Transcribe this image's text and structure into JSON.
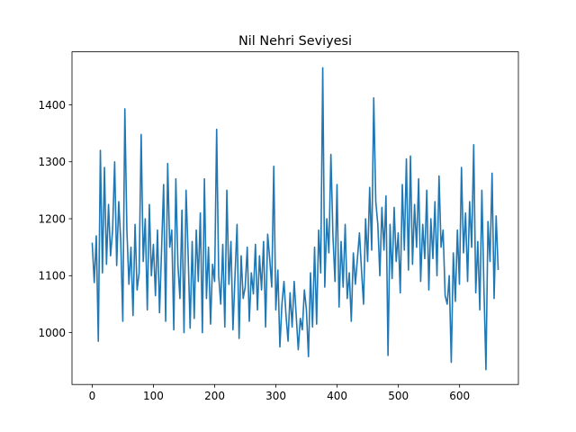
{
  "chart_data": {
    "type": "line",
    "title": "Nil Nehri Seviyesi",
    "xlabel": "",
    "ylabel": "",
    "xlim": [
      -33,
      696
    ],
    "ylim": [
      909,
      1493
    ],
    "xticks": [
      0,
      100,
      200,
      300,
      400,
      500,
      600
    ],
    "yticks": [
      1000,
      1100,
      1200,
      1300,
      1400
    ],
    "grid": false,
    "line_color": "#1f77b4",
    "series": [
      {
        "x_start": 0,
        "x_step": 1,
        "values": [
          1158,
          1088,
          1170,
          985,
          1320,
          1105,
          1290,
          1120,
          1225,
          1135,
          1180,
          1300,
          1118,
          1230,
          1160,
          1020,
          1393,
          1180,
          1085,
          1150,
          1030,
          1190,
          1075,
          1105,
          1348,
          1125,
          1200,
          1040,
          1225,
          1100,
          1155,
          1065,
          1180,
          1035,
          1145,
          1260,
          1020,
          1297,
          1150,
          1180,
          1005,
          1270,
          1120,
          1060,
          1215,
          1000,
          1250,
          1140,
          1008,
          1160,
          1025,
          1180,
          1090,
          1210,
          1000,
          1270,
          1060,
          1150,
          1015,
          1120,
          1090,
          1357,
          1100,
          1050,
          1155,
          1010,
          1250,
          1085,
          1160,
          1005,
          1100,
          1190,
          990,
          1135,
          1060,
          1080,
          1150,
          1020,
          1105,
          1068,
          1155,
          1040,
          1135,
          1075,
          1160,
          1010,
          1173,
          1130,
          1080,
          1292,
          1040,
          1110,
          975,
          1050,
          1090,
          1030,
          985,
          1070,
          1010,
          1090,
          1030,
          970,
          1025,
          1005,
          1075,
          1040,
          958,
          1105,
          1010,
          1150,
          1015,
          1180,
          1105,
          1465,
          1080,
          1200,
          1140,
          1313,
          1170,
          1090,
          1260,
          1045,
          1160,
          1080,
          1190,
          1060,
          1105,
          1020,
          1140,
          1085,
          1130,
          1175,
          1110,
          1050,
          1200,
          1125,
          1255,
          1145,
          1412,
          1230,
          1190,
          1100,
          1220,
          1145,
          1240,
          960,
          1190,
          1095,
          1220,
          1125,
          1175,
          1070,
          1260,
          1145,
          1305,
          1110,
          1310,
          1120,
          1225,
          1150,
          1270,
          1090,
          1190,
          1130,
          1250,
          1075,
          1200,
          1130,
          1230,
          1100,
          1275,
          1150,
          1180,
          1065,
          1050,
          1100,
          948,
          1140,
          1055,
          1180,
          1085,
          1290,
          1140,
          1210,
          1090,
          1230,
          1150,
          1330,
          1070,
          1160,
          1040,
          1250,
          1080,
          935,
          1195,
          1125,
          1280,
          1060,
          1205,
          1110
        ]
      }
    ]
  }
}
